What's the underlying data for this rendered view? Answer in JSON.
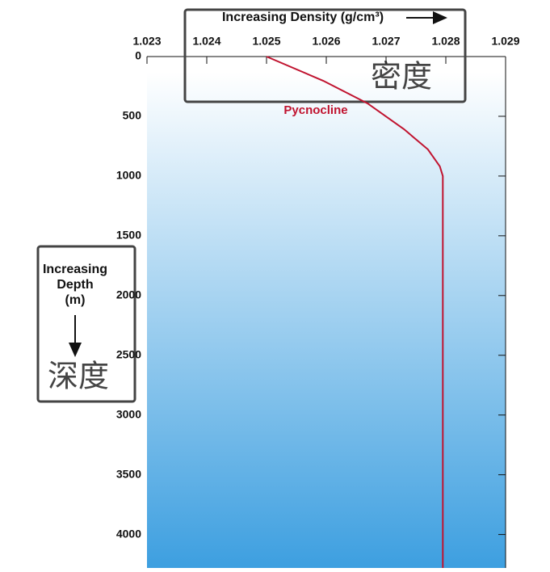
{
  "chart_data": {
    "type": "line",
    "x_label": "Increasing Density (g/cm³)",
    "y_label": [
      "Increasing",
      "Depth",
      "(m)"
    ],
    "x_annotation": "密度",
    "y_annotation": "深度",
    "x": [
      1.025,
      1.02595,
      1.02669,
      1.0273,
      1.0277,
      1.0279,
      1.02795,
      1.02795
    ],
    "series": [
      {
        "name": "Pycnocline",
        "color": "#c0132f",
        "values": [
          0,
          203,
          392,
          608,
          777,
          919,
          1000,
          4280
        ]
      }
    ],
    "xlim": [
      1.023,
      1.029
    ],
    "xticks": [
      1.023,
      1.024,
      1.025,
      1.026,
      1.027,
      1.028,
      1.029
    ],
    "ylim": [
      0,
      4280
    ],
    "yticks": [
      0,
      500,
      1000,
      1500,
      2000,
      2500,
      3000,
      3500,
      4000
    ],
    "y_inverted": true,
    "x_axis_position": "top",
    "background_gradient": [
      "#ffffff",
      "#3d9fe0"
    ]
  }
}
